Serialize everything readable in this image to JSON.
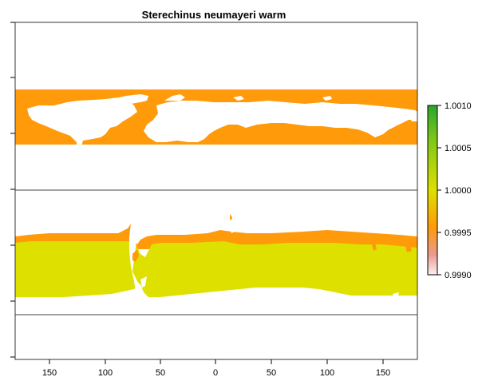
{
  "title": "Sterechinus neumayeri warm",
  "colors": {
    "band_orange": "#FF9A0A",
    "band_yellow": "#DEE000",
    "frame": "#333333",
    "background": "#ffffff"
  },
  "chart_data": {
    "type": "heatmap",
    "title": "Sterechinus neumayeri warm",
    "x_ticks": [
      "150",
      "100",
      "50",
      "0",
      "50",
      "100",
      "150"
    ],
    "xlim": [
      -180,
      180
    ],
    "ylim": [
      -90,
      90
    ],
    "horizontal_lines_at_lat": [
      0,
      -55
    ],
    "legend": {
      "min": 0.999,
      "max": 1.001,
      "ticks": [
        "1.0010",
        "1.0005",
        "1.0000",
        "0.9995",
        "0.9990"
      ],
      "gradient": [
        "#2BA52B",
        "#7DC71A",
        "#DEE000",
        "#FF9A0A",
        "#E89A8F",
        "#FCEFF0"
      ]
    }
  }
}
